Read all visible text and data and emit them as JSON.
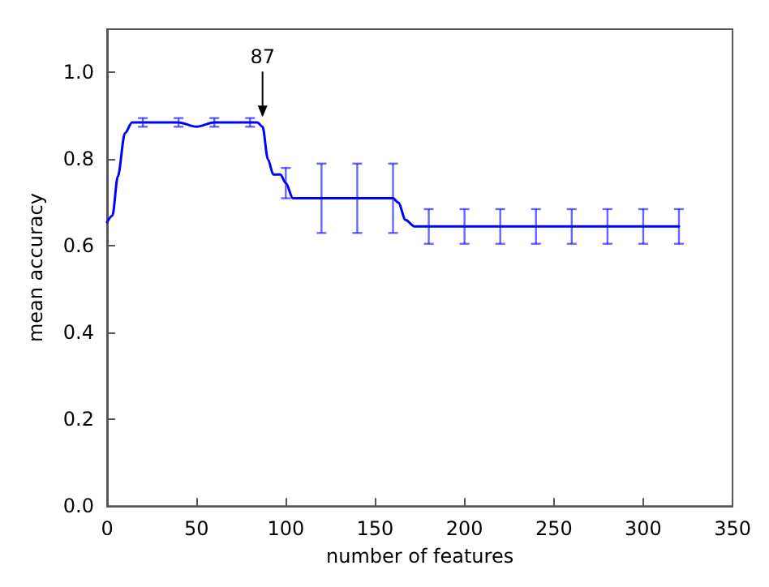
{
  "chart_data": {
    "type": "line",
    "xlabel": "number of features",
    "ylabel": "mean accuracy",
    "x": [
      0,
      3,
      6,
      10,
      14,
      20,
      30,
      40,
      50,
      60,
      70,
      80,
      84,
      87,
      90,
      93,
      97,
      100,
      104,
      110,
      120,
      140,
      160,
      163,
      167,
      172,
      180,
      200,
      220,
      240,
      260,
      280,
      300,
      320
    ],
    "series": [
      {
        "color": "#0000ff",
        "values": [
          0.655,
          0.67,
          0.76,
          0.86,
          0.885,
          0.885,
          0.885,
          0.885,
          0.875,
          0.885,
          0.885,
          0.885,
          0.885,
          0.875,
          0.8,
          0.765,
          0.765,
          0.745,
          0.71,
          0.71,
          0.71,
          0.71,
          0.71,
          0.7,
          0.66,
          0.645,
          0.645,
          0.645,
          0.645,
          0.645,
          0.645,
          0.645,
          0.645,
          0.645
        ],
        "errors": [
          null,
          null,
          null,
          null,
          null,
          0.01,
          null,
          0.01,
          null,
          0.01,
          null,
          0.01,
          null,
          null,
          null,
          null,
          null,
          0.035,
          null,
          null,
          0.08,
          0.08,
          0.08,
          null,
          null,
          null,
          0.04,
          0.04,
          0.04,
          0.04,
          0.04,
          0.04,
          0.04,
          0.04
        ]
      }
    ],
    "annotations": [
      {
        "text": "87",
        "x": 87,
        "y": 0.89
      }
    ],
    "xlim": [
      0,
      350
    ],
    "xticks": [
      0,
      50,
      100,
      150,
      200,
      250,
      300,
      350
    ],
    "ylim": [
      0,
      1.1
    ],
    "yticks": [
      {
        "value": 0,
        "label": "0.0"
      },
      0.2,
      0.4,
      0.6,
      0.8,
      {
        "value": 1,
        "label": "1.0"
      }
    ],
    "grid": false,
    "marker": "none",
    "line_style": "solid"
  }
}
